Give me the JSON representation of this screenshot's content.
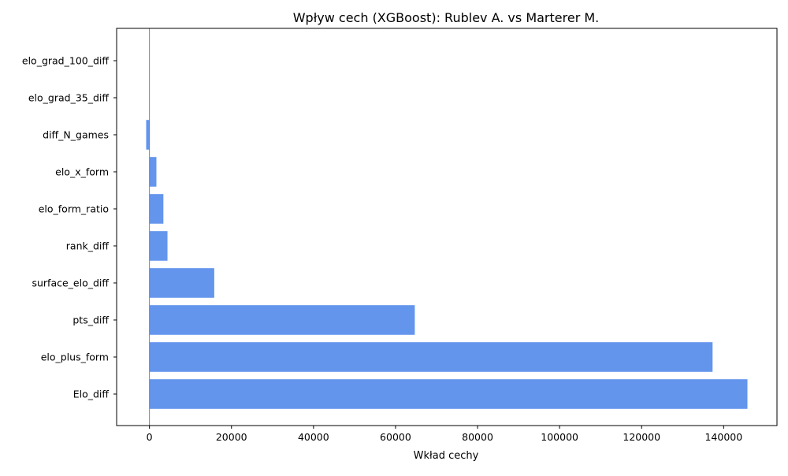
{
  "chart_data": {
    "type": "bar",
    "orientation": "horizontal",
    "title": "Wpływ cech (XGBoost): Rublev A. vs Marterer M.",
    "xlabel": "Wkład cechy",
    "ylabel": "",
    "xlim": [
      -8000,
      153000
    ],
    "xticks": [
      0,
      20000,
      40000,
      60000,
      80000,
      100000,
      120000,
      140000
    ],
    "xtick_labels": [
      "0",
      "20000",
      "40000",
      "60000",
      "80000",
      "100000",
      "120000",
      "140000"
    ],
    "categories": [
      "Elo_diff",
      "elo_plus_form",
      "pts_diff",
      "surface_elo_diff",
      "rank_diff",
      "elo_form_ratio",
      "elo_x_form",
      "diff_N_games",
      "elo_grad_35_diff",
      "elo_grad_100_diff"
    ],
    "values": [
      145800,
      137300,
      64700,
      15800,
      4400,
      3400,
      1700,
      -800,
      0,
      0
    ],
    "bar_color": "#6495ed",
    "zero_line_color": "#808080",
    "grid": false,
    "legend": "none"
  }
}
